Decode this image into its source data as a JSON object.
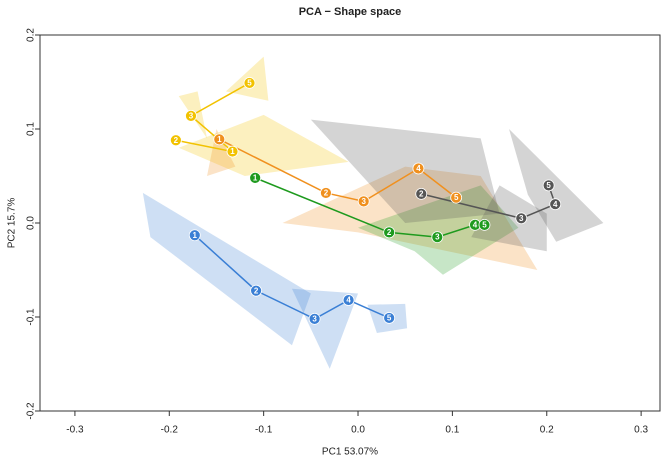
{
  "chart_data": {
    "type": "scatter",
    "title": "PCA − Shape space",
    "x_label": "PC1 53.07%",
    "y_label": "PC2 15.7%",
    "xlim": [
      -0.337,
      0.32
    ],
    "ylim": [
      -0.2,
      0.2
    ],
    "xticks": [
      -0.3,
      -0.2,
      -0.1,
      {
        "value": 0,
        "label": "0.0"
      },
      0.1,
      0.2,
      0.3
    ],
    "yticks": [
      -0.2,
      -0.1,
      {
        "value": 0,
        "label": "0.0"
      },
      0.1,
      0.2
    ],
    "series": [
      {
        "color": "#3a7fd5",
        "labels": [
          "1",
          "2",
          "3",
          "4",
          "5"
        ],
        "x": [
          -0.173,
          -0.108,
          -0.046,
          -0.01,
          0.033
        ],
        "values": [
          -0.013,
          -0.072,
          -0.102,
          -0.082,
          -0.101
        ],
        "hulls": [
          {
            "x": [
              -0.228,
              -0.05,
              -0.07,
              -0.22
            ],
            "y": [
              0.032,
              -0.075,
              -0.13,
              -0.015
            ]
          },
          {
            "x": [
              -0.07,
              0.0,
              -0.03
            ],
            "y": [
              -0.07,
              -0.075,
              -0.155
            ]
          },
          {
            "x": [
              0.01,
              0.05,
              0.052,
              0.02
            ],
            "y": [
              -0.087,
              -0.086,
              -0.112,
              -0.117
            ]
          }
        ]
      },
      {
        "color": "#f2c200",
        "labels": [
          "2",
          "1",
          "3",
          "5"
        ],
        "x": [
          -0.193,
          -0.133,
          -0.177,
          -0.115
        ],
        "values": [
          0.088,
          0.076,
          0.114,
          0.149
        ],
        "hulls": [
          {
            "x": [
              -0.14,
              -0.1,
              -0.095
            ],
            "y": [
              0.14,
              0.177,
              0.13
            ]
          },
          {
            "x": [
              -0.19,
              -0.1,
              -0.01,
              -0.12
            ],
            "y": [
              0.08,
              0.115,
              0.065,
              0.05
            ]
          },
          {
            "x": [
              -0.19,
              -0.16,
              -0.17
            ],
            "y": [
              0.135,
              0.09,
              0.14
            ]
          }
        ]
      },
      {
        "color": "#f0901e",
        "labels": [
          "1",
          "2",
          "3",
          "4",
          "5"
        ],
        "x": [
          -0.147,
          -0.034,
          0.006,
          0.064,
          0.104
        ],
        "values": [
          0.089,
          0.032,
          0.023,
          0.058,
          0.027
        ],
        "hulls": [
          {
            "x": [
              -0.15,
              -0.13,
              -0.16
            ],
            "y": [
              0.1,
              0.06,
              0.05
            ]
          },
          {
            "x": [
              -0.08,
              0.05,
              0.13,
              0.19,
              0.0
            ],
            "y": [
              0.0,
              0.06,
              0.05,
              -0.05,
              -0.01
            ]
          }
        ]
      },
      {
        "color": "#1e9a1e",
        "labels": [
          "1",
          "2",
          "3",
          "4",
          "5"
        ],
        "x": [
          -0.109,
          0.033,
          0.084,
          0.124,
          0.134
        ],
        "values": [
          0.048,
          -0.01,
          -0.015,
          -0.002,
          -0.002
        ],
        "hulls": [
          {
            "x": [
              0.0,
              0.13,
              0.17,
              0.09,
              0.06
            ],
            "y": [
              -0.005,
              0.04,
              -0.005,
              -0.055,
              -0.03
            ]
          }
        ]
      },
      {
        "color": "#555555",
        "labels": [
          "2",
          "3",
          "4",
          "5"
        ],
        "x": [
          0.067,
          0.173,
          0.209,
          0.202
        ],
        "values": [
          0.031,
          0.005,
          0.02,
          0.04
        ],
        "hulls": [
          {
            "x": [
              -0.05,
              0.13,
              0.15,
              0.05
            ],
            "y": [
              0.11,
              0.09,
              0.01,
              0.0
            ]
          },
          {
            "x": [
              0.16,
              0.26,
              0.21,
              0.18
            ],
            "y": [
              0.1,
              0.0,
              -0.02,
              0.03
            ]
          },
          {
            "x": [
              0.15,
              0.2,
              0.2,
              0.12
            ],
            "y": [
              0.04,
              0.01,
              -0.03,
              -0.015
            ]
          }
        ]
      }
    ]
  }
}
